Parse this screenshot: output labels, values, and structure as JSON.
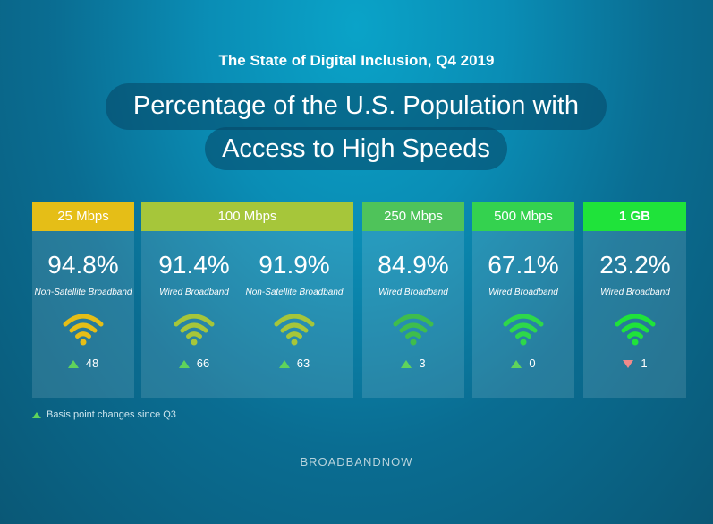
{
  "subtitle": "The State of Digital Inclusion, Q4 2019",
  "title_line1": "Percentage of the U.S. Population with",
  "title_line2": "Access to High Speeds",
  "chart_data": {
    "type": "table",
    "tiers": [
      {
        "label": "25 Mbps",
        "color": "#e5be17",
        "bold": false
      },
      {
        "label": "100 Mbps",
        "color": "#a6c63a",
        "bold": false
      },
      {
        "label": "250 Mbps",
        "color": "#4fc35a",
        "bold": false
      },
      {
        "label": "500 Mbps",
        "color": "#34d24f",
        "bold": false
      },
      {
        "label": "1 GB",
        "color": "#1fe33a",
        "bold": true
      }
    ],
    "metrics": [
      {
        "tier": "25 Mbps",
        "value": "94.8%",
        "label": "Non-Satellite Broadband",
        "change": "48",
        "direction": "up",
        "icon_color": "#e5be17"
      },
      {
        "tier": "100 Mbps",
        "value": "91.4%",
        "label": "Wired Broadband",
        "change": "66",
        "direction": "up",
        "icon_color": "#a6c63a"
      },
      {
        "tier": "100 Mbps",
        "value": "91.9%",
        "label": "Non-Satellite Broadband",
        "change": "63",
        "direction": "up",
        "icon_color": "#a6c63a"
      },
      {
        "tier": "250 Mbps",
        "value": "84.9%",
        "label": "Wired Broadband",
        "change": "3",
        "direction": "up",
        "icon_color": "#3fbd4c"
      },
      {
        "tier": "500 Mbps",
        "value": "67.1%",
        "label": "Wired Broadband",
        "change": "0",
        "direction": "up",
        "icon_color": "#2ed84a"
      },
      {
        "tier": "1 GB",
        "value": "23.2%",
        "label": "Wired Broadband",
        "change": "1",
        "direction": "down",
        "icon_color": "#1fe33a"
      }
    ]
  },
  "footnote": "Basis point changes since Q3",
  "brand": "BROADBANDNOW"
}
